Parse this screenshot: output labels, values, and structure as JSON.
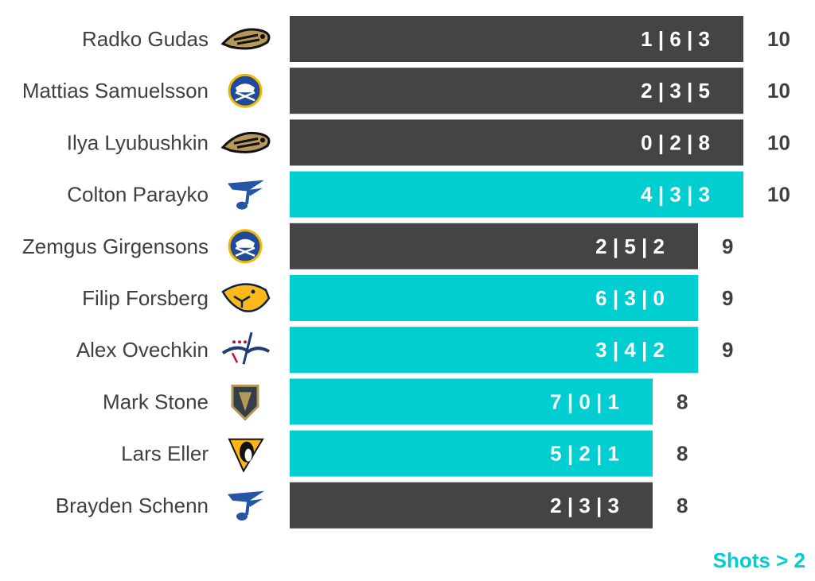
{
  "colors": {
    "default_bar": "#444444",
    "highlight_bar": "#00CED1",
    "text": "#404040",
    "bar_text": "#ffffff"
  },
  "legend_note": "Shots > 2",
  "chart_data": {
    "type": "bar",
    "orientation": "horizontal",
    "title": "",
    "xlabel": "",
    "ylabel": "",
    "xlim": [
      0,
      10
    ],
    "grid": false,
    "categories": [
      "Radko Gudas",
      "Mattias Samuelsson",
      "Ilya Lyubushkin",
      "Colton Parayko",
      "Zemgus Girgensons",
      "Filip Forsberg",
      "Alex Ovechkin",
      "Mark Stone",
      "Lars Eller",
      "Brayden Schenn"
    ],
    "values": [
      10,
      10,
      10,
      10,
      9,
      9,
      9,
      8,
      8,
      8
    ],
    "bar_labels": [
      "1 | 6 | 3",
      "2 | 3 | 5",
      "0 | 2 | 8",
      "4 | 3 | 3",
      "2 | 5 | 2",
      "6 | 3 | 0",
      "3 | 4 | 2",
      "7 | 0 | 1",
      "5 | 2 | 1",
      "2 | 3 | 3"
    ],
    "teams": [
      "anaheim-ducks",
      "buffalo-sabres",
      "anaheim-ducks",
      "st-louis-blues",
      "buffalo-sabres",
      "nashville-predators",
      "washington-capitals",
      "vegas-golden-knights",
      "pittsburgh-penguins",
      "st-louis-blues"
    ],
    "highlighted": [
      false,
      false,
      false,
      true,
      false,
      true,
      true,
      true,
      true,
      false
    ],
    "highlight_meaning": "Shots > 2"
  }
}
